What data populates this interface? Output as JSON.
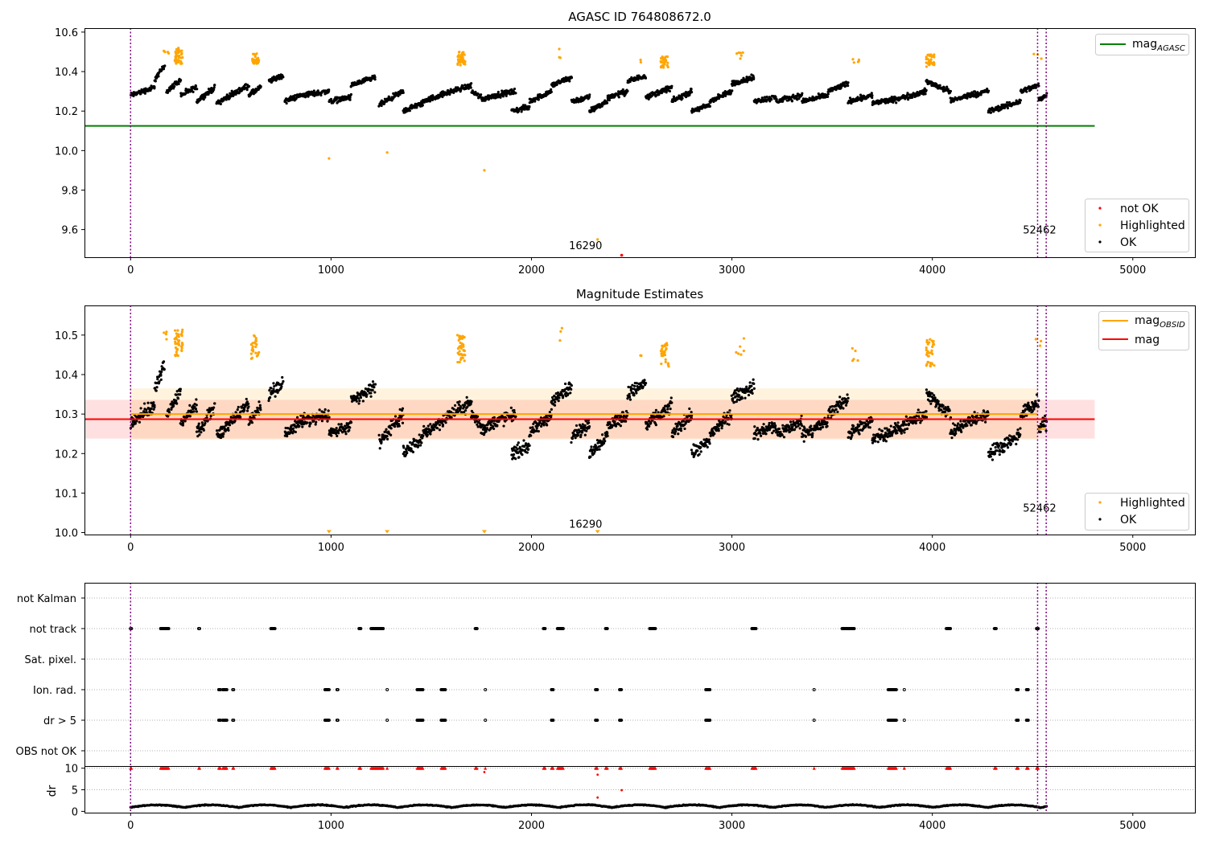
{
  "chart_data": [
    {
      "type": "scatter",
      "title": "AGASC ID 764808672.0",
      "xlim": [
        -230,
        5310
      ],
      "ylim": [
        9.46,
        10.62
      ],
      "xticks": [
        0,
        1000,
        2000,
        3000,
        4000,
        5000
      ],
      "yticks": [
        9.6,
        9.8,
        10.0,
        10.2,
        10.4,
        10.6
      ],
      "ytick_labels": [
        "9.6",
        "9.8",
        "10.0",
        "10.2",
        "10.4",
        "10.6"
      ],
      "hlines": [
        {
          "name": "mag_AGASC",
          "y": 10.125,
          "x_range": [
            -230,
            4810
          ],
          "color": "#008000"
        }
      ],
      "vlines": [
        0,
        4525,
        4568
      ],
      "vline_color": "#800080",
      "annotations": [
        {
          "text": "16290",
          "x": 2270,
          "y": 9.5
        },
        {
          "text": "52462",
          "x": 4535,
          "y": 9.58
        }
      ],
      "legend_upper": {
        "position": "upper-right",
        "entries": [
          {
            "kind": "line",
            "label": "mag",
            "sub": "AGASC",
            "color": "#008000"
          }
        ]
      },
      "legend_lower": {
        "position": "lower-right",
        "entries": [
          {
            "kind": "dot",
            "label": "not OK",
            "color": "#ff0000"
          },
          {
            "kind": "dot",
            "label": "Highlighted",
            "color": "#ffa500"
          },
          {
            "kind": "dot",
            "label": "OK",
            "color": "#000000"
          }
        ]
      },
      "highlight_clusters": [
        [
          180,
          10.47,
          10.53,
          4
        ],
        [
          240,
          10.44,
          10.52,
          40
        ],
        [
          620,
          10.44,
          10.5,
          25
        ],
        [
          1650,
          10.43,
          10.5,
          40
        ],
        [
          2150,
          10.47,
          10.52,
          3
        ],
        [
          2550,
          10.44,
          10.46,
          2
        ],
        [
          2665,
          10.42,
          10.48,
          30
        ],
        [
          3040,
          10.45,
          10.5,
          6
        ],
        [
          3620,
          10.43,
          10.47,
          5
        ],
        [
          3990,
          10.42,
          10.49,
          35
        ],
        [
          4525,
          10.46,
          10.49,
          3
        ]
      ],
      "highlight_points": [
        [
          990,
          9.96
        ],
        [
          1280,
          9.99
        ],
        [
          1765,
          9.9
        ],
        [
          2330,
          9.55
        ]
      ],
      "notok_points": [
        [
          2450,
          9.47
        ]
      ],
      "segments": [
        [
          0,
          120,
          10.28,
          10.32
        ],
        [
          120,
          170,
          10.36,
          10.43
        ],
        [
          180,
          250,
          10.3,
          10.36
        ],
        [
          250,
          330,
          10.28,
          10.32
        ],
        [
          330,
          420,
          10.25,
          10.32
        ],
        [
          430,
          480,
          10.24,
          10.27
        ],
        [
          480,
          590,
          10.27,
          10.33
        ],
        [
          590,
          650,
          10.28,
          10.32
        ],
        [
          690,
          760,
          10.35,
          10.38
        ],
        [
          770,
          850,
          10.25,
          10.28
        ],
        [
          850,
          990,
          10.28,
          10.3
        ],
        [
          990,
          1100,
          10.25,
          10.27
        ],
        [
          1100,
          1220,
          10.33,
          10.37
        ],
        [
          1240,
          1360,
          10.23,
          10.3
        ],
        [
          1360,
          1460,
          10.2,
          10.24
        ],
        [
          1460,
          1600,
          10.25,
          10.3
        ],
        [
          1600,
          1700,
          10.3,
          10.33
        ],
        [
          1700,
          1750,
          10.3,
          10.27
        ],
        [
          1750,
          1820,
          10.26,
          10.28
        ],
        [
          1820,
          1920,
          10.28,
          10.3
        ],
        [
          1900,
          1990,
          10.2,
          10.22
        ],
        [
          1990,
          2100,
          10.25,
          10.3
        ],
        [
          2100,
          2200,
          10.33,
          10.37
        ],
        [
          2200,
          2290,
          10.25,
          10.27
        ],
        [
          2290,
          2380,
          10.2,
          10.25
        ],
        [
          2380,
          2480,
          10.27,
          10.3
        ],
        [
          2480,
          2570,
          10.35,
          10.38
        ],
        [
          2570,
          2700,
          10.27,
          10.32
        ],
        [
          2700,
          2800,
          10.25,
          10.3
        ],
        [
          2800,
          2890,
          10.2,
          10.23
        ],
        [
          2890,
          3000,
          10.25,
          10.3
        ],
        [
          3000,
          3110,
          10.34,
          10.37
        ],
        [
          3110,
          3220,
          10.25,
          10.27
        ],
        [
          3220,
          3350,
          10.25,
          10.28
        ],
        [
          3350,
          3480,
          10.25,
          10.28
        ],
        [
          3480,
          3580,
          10.3,
          10.34
        ],
        [
          3580,
          3700,
          10.25,
          10.28
        ],
        [
          3700,
          3820,
          10.24,
          10.26
        ],
        [
          3820,
          3970,
          10.26,
          10.3
        ],
        [
          3970,
          4090,
          10.35,
          10.3
        ],
        [
          4090,
          4180,
          10.25,
          10.28
        ],
        [
          4180,
          4280,
          10.28,
          10.3
        ],
        [
          4280,
          4350,
          10.2,
          10.22
        ],
        [
          4350,
          4440,
          10.22,
          10.25
        ],
        [
          4440,
          4530,
          10.3,
          10.33
        ],
        [
          4530,
          4570,
          10.26,
          10.28
        ]
      ]
    },
    {
      "type": "scatter",
      "title": "Magnitude Estimates",
      "xlim": [
        -230,
        5310
      ],
      "ylim": [
        9.995,
        10.575
      ],
      "xticks": [
        0,
        1000,
        2000,
        3000,
        4000,
        5000
      ],
      "yticks": [
        10.0,
        10.1,
        10.2,
        10.3,
        10.4,
        10.5
      ],
      "ytick_labels": [
        "10.0",
        "10.1",
        "10.2",
        "10.3",
        "10.4",
        "10.5"
      ],
      "hlines": [
        {
          "name": "mag_OBSID",
          "y": 10.3,
          "x_range": [
            0,
            4525
          ],
          "color": "#ffa500"
        },
        {
          "name": "mag_OBSID_tail",
          "y": 10.262,
          "x_range": [
            4525,
            4568
          ],
          "color": "#ffa500"
        },
        {
          "name": "mag",
          "y": 10.287,
          "x_range": [
            -230,
            4810
          ],
          "color": "#ff0000"
        }
      ],
      "bands": [
        {
          "y0": 10.238,
          "y1": 10.336,
          "x_range": [
            -230,
            4810
          ],
          "color": "#ff0000",
          "opacity": 0.12
        },
        {
          "y0": 10.235,
          "y1": 10.365,
          "x_range": [
            0,
            4525
          ],
          "color": "#ffa500",
          "opacity": 0.13
        }
      ],
      "vlines": [
        0,
        4525,
        4568
      ],
      "vline_color": "#800080",
      "annotations": [
        {
          "text": "16290",
          "x": 2270,
          "y": 10.012
        },
        {
          "text": "52462",
          "x": 4535,
          "y": 10.053
        }
      ],
      "legend_upper": {
        "position": "upper-right",
        "entries": [
          {
            "kind": "line",
            "label": "mag",
            "sub": "OBSID",
            "color": "#ffa500"
          },
          {
            "kind": "line",
            "label": "mag",
            "sub": "",
            "color": "#ff0000"
          }
        ]
      },
      "legend_lower": {
        "position": "lower-right",
        "entries": [
          {
            "kind": "dot",
            "label": "Highlighted",
            "color": "#ffa500"
          },
          {
            "kind": "dot",
            "label": "OK",
            "color": "#000000"
          }
        ]
      },
      "lower_limit_markers": [
        990,
        1280,
        1765,
        2330
      ]
    },
    {
      "type": "scatter",
      "xlim": [
        -230,
        5310
      ],
      "ylim": [
        0.5,
        6.5
      ],
      "flag_rows": [
        "not Kalman",
        "not track",
        "Sat. pixel.",
        "Ion. rad.",
        "dr > 5",
        "OBS not OK"
      ],
      "flag_events": {
        "not track": [
          [
            0,
            5
          ],
          [
            150,
            190
          ],
          [
            340,
            345
          ],
          [
            700,
            720
          ],
          [
            1140,
            1150
          ],
          [
            1200,
            1260
          ],
          [
            1720,
            1730
          ],
          [
            2060,
            2070
          ],
          [
            2130,
            2160
          ],
          [
            2370,
            2380
          ],
          [
            2590,
            2620
          ],
          [
            3100,
            3120
          ],
          [
            3550,
            3610
          ],
          [
            4070,
            4090
          ],
          [
            4310,
            4320
          ],
          [
            4520,
            4530
          ]
        ],
        "Ion. rad.": [
          [
            440,
            450
          ],
          [
            460,
            480
          ],
          [
            510,
            515
          ],
          [
            970,
            990
          ],
          [
            1030,
            1035
          ],
          [
            1280,
            1282
          ],
          [
            1430,
            1460
          ],
          [
            1550,
            1570
          ],
          [
            1770,
            1772
          ],
          [
            2100,
            2110
          ],
          [
            2320,
            2330
          ],
          [
            2440,
            2450
          ],
          [
            2870,
            2890
          ],
          [
            3410,
            3412
          ],
          [
            3780,
            3820
          ],
          [
            3860,
            3862
          ],
          [
            4420,
            4430
          ],
          [
            4470,
            4480
          ]
        ],
        "dr > 5": [
          [
            440,
            450
          ],
          [
            460,
            480
          ],
          [
            510,
            515
          ],
          [
            970,
            990
          ],
          [
            1030,
            1035
          ],
          [
            1280,
            1282
          ],
          [
            1430,
            1460
          ],
          [
            1550,
            1570
          ],
          [
            1770,
            1772
          ],
          [
            2100,
            2110
          ],
          [
            2320,
            2330
          ],
          [
            2440,
            2450
          ],
          [
            2870,
            2890
          ],
          [
            3410,
            3412
          ],
          [
            3780,
            3820
          ],
          [
            3860,
            3862
          ],
          [
            4420,
            4430
          ],
          [
            4470,
            4480
          ]
        ]
      }
    },
    {
      "type": "scatter",
      "ylabel": "dr",
      "xlim": [
        -230,
        5310
      ],
      "ylim": [
        -0.3,
        10.5
      ],
      "xticks": [
        0,
        1000,
        2000,
        3000,
        4000,
        5000
      ],
      "yticks": [
        0,
        5,
        10
      ],
      "ytick_labels": [
        "0",
        "5",
        "10"
      ],
      "clipped_value": 10,
      "red_points": [
        [
          2330,
          8.5
        ],
        [
          2330,
          3.2
        ],
        [
          2450,
          4.9
        ],
        [
          1765,
          9.1
        ]
      ]
    }
  ]
}
